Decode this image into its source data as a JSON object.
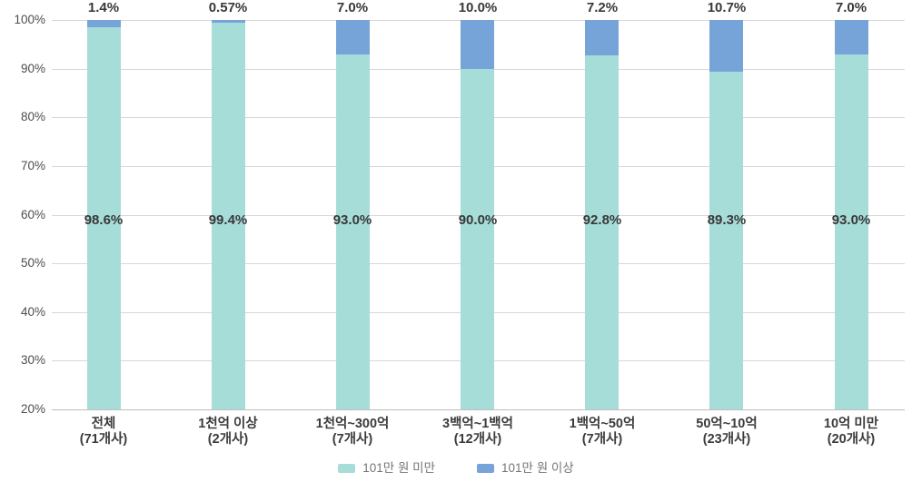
{
  "chart_data": {
    "type": "bar",
    "stacked": true,
    "title": "",
    "xlabel": "",
    "ylabel": "",
    "ylim": [
      20,
      100
    ],
    "grid": "horizontal",
    "legend_position": "bottom",
    "categories": [
      {
        "label": "전체",
        "count": "(71개사)"
      },
      {
        "label": "1천억 이상",
        "count": "(2개사)"
      },
      {
        "label": "1천억~300억",
        "count": "(7개사)"
      },
      {
        "label": "3백억~1백억",
        "count": "(12개사)"
      },
      {
        "label": "1백억~50억",
        "count": "(7개사)"
      },
      {
        "label": "50억~10억",
        "count": "(23개사)"
      },
      {
        "label": "10억 미만",
        "count": "(20개사)"
      }
    ],
    "series": [
      {
        "name": "101만 원 미만",
        "color": "#a7ddd9",
        "values": [
          98.6,
          99.4,
          93.0,
          90.0,
          92.8,
          89.3,
          93.0
        ],
        "labels": [
          "98.6%",
          "99.4%",
          "93.0%",
          "90.0%",
          "92.8%",
          "89.3%",
          "93.0%"
        ]
      },
      {
        "name": "101만 원 이상",
        "color": "#76a4d8",
        "values": [
          1.4,
          0.57,
          7.0,
          10.0,
          7.2,
          10.7,
          7.0
        ],
        "labels": [
          "1.4%",
          "0.57%",
          "7.0%",
          "10.0%",
          "7.2%",
          "10.7%",
          "7.0%"
        ]
      }
    ],
    "y_axis": {
      "tick_labels": [
        "100%",
        "90%",
        "80%",
        "70%",
        "60%",
        "50%",
        "40%",
        "30%",
        "20%"
      ],
      "tick_values": [
        100,
        90,
        80,
        70,
        60,
        50,
        40,
        30,
        20
      ]
    },
    "colors": {
      "grid": "#d7d7d7",
      "axis_line": "#bdbdbd",
      "tick_text": "#4d4d4d",
      "data_label_text": "#383838",
      "category_text": "#3b3b3b",
      "legend_text": "#757575",
      "background": "#ffffff"
    }
  }
}
